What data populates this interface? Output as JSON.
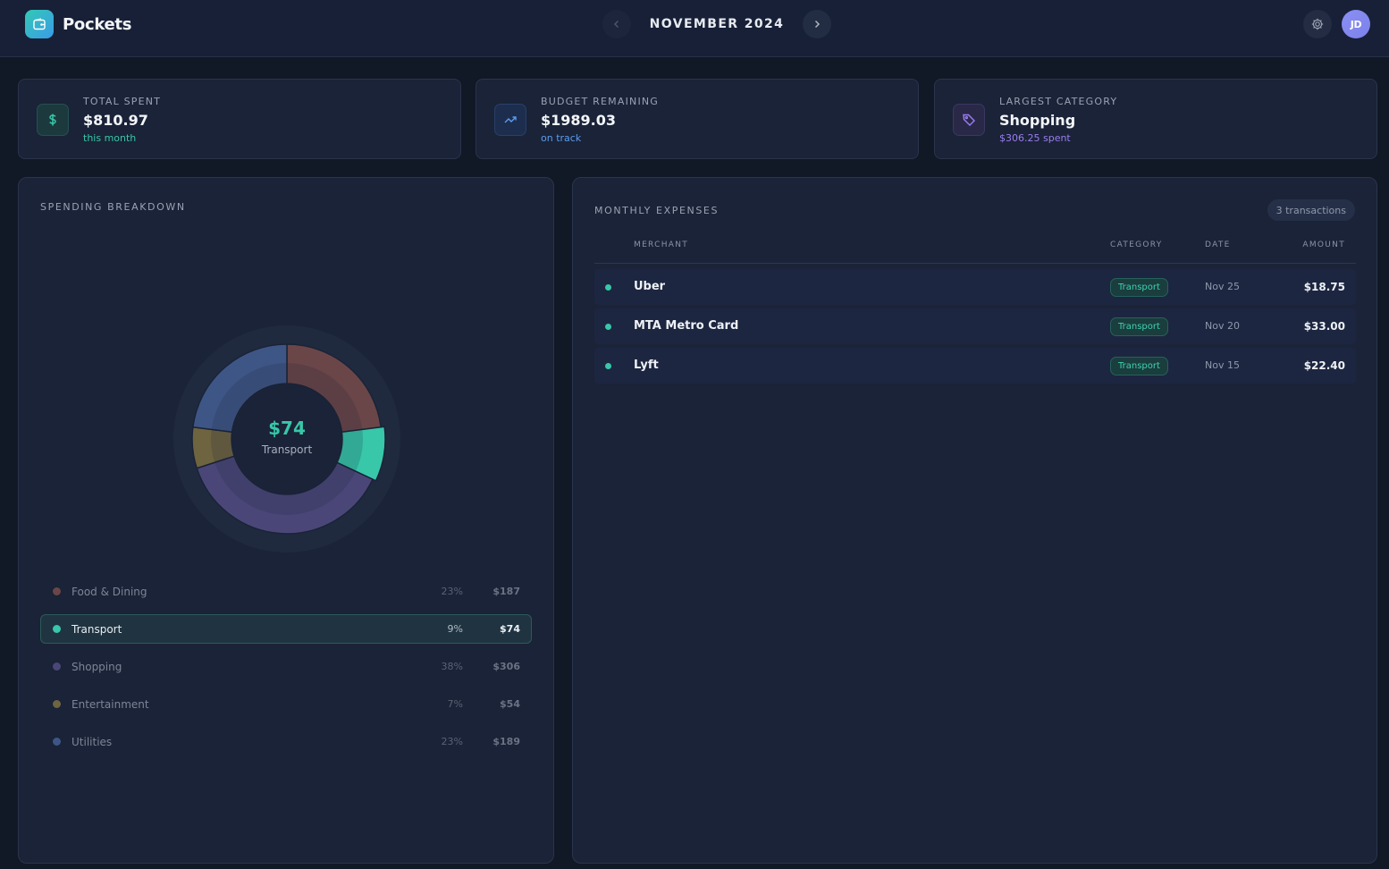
{
  "app": {
    "name": "Pockets"
  },
  "header": {
    "month": "NOVEMBER 2024",
    "avatar_initials": "JD"
  },
  "stats": [
    {
      "label": "TOTAL SPENT",
      "value": "$810.97",
      "sub": "this month",
      "icon": "dollar-icon",
      "accent": "#38c7a9"
    },
    {
      "label": "BUDGET REMAINING",
      "value": "$1989.03",
      "sub": "on track",
      "icon": "trending-up-icon",
      "accent": "#5b9cf0"
    },
    {
      "label": "LARGEST CATEGORY",
      "value": "Shopping",
      "sub": "$306.25 spent",
      "icon": "tag-icon",
      "accent": "#9a7df0"
    }
  ],
  "breakdown": {
    "title": "SPENDING BREAKDOWN",
    "center_amount": "$74",
    "center_label": "Transport",
    "categories": [
      {
        "name": "Food & Dining",
        "pct": "23%",
        "amount": "$187",
        "color": "#6b4648",
        "share": 23
      },
      {
        "name": "Transport",
        "pct": "9%",
        "amount": "$74",
        "color": "#38c7a9",
        "share": 9,
        "active": true
      },
      {
        "name": "Shopping",
        "pct": "38%",
        "amount": "$306",
        "color": "#4a4778",
        "share": 38
      },
      {
        "name": "Entertainment",
        "pct": "7%",
        "amount": "$54",
        "color": "#6e6440",
        "share": 7
      },
      {
        "name": "Utilities",
        "pct": "23%",
        "amount": "$189",
        "color": "#3e5686",
        "share": 23
      }
    ]
  },
  "expenses": {
    "title": "MONTHLY EXPENSES",
    "count_label": "3 transactions",
    "columns": {
      "merchant": "MERCHANT",
      "category": "CATEGORY",
      "date": "DATE",
      "amount": "AMOUNT"
    },
    "rows": [
      {
        "merchant": "Uber",
        "category": "Transport",
        "date": "Nov 25",
        "amount": "$18.75"
      },
      {
        "merchant": "MTA Metro Card",
        "category": "Transport",
        "date": "Nov 20",
        "amount": "$33.00"
      },
      {
        "merchant": "Lyft",
        "category": "Transport",
        "date": "Nov 15",
        "amount": "$22.40"
      }
    ]
  }
}
